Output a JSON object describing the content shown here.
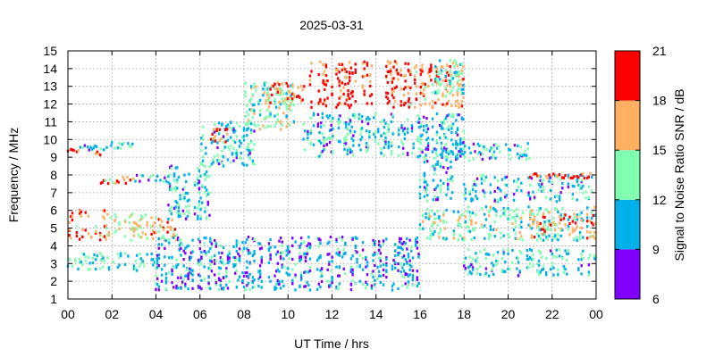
{
  "chart_data": {
    "type": "scatter",
    "title": "2025-03-31",
    "xlabel": "UT Time / hrs",
    "ylabel": "Frequency / MHz",
    "xlim": [
      0,
      24
    ],
    "ylim": [
      1,
      15
    ],
    "x_ticks": [
      "00",
      "02",
      "04",
      "06",
      "08",
      "10",
      "12",
      "14",
      "16",
      "18",
      "20",
      "22",
      "00"
    ],
    "y_ticks": [
      "1",
      "2",
      "3",
      "4",
      "5",
      "6",
      "7",
      "8",
      "9",
      "10",
      "11",
      "12",
      "13",
      "14",
      "15"
    ],
    "grid": true,
    "colorbar": {
      "label": "Signal to Noise Ratio SNR / dB",
      "min": 6,
      "max": 21,
      "ticks": [
        "6",
        "9",
        "12",
        "15",
        "18",
        "21"
      ],
      "bands": [
        {
          "from": 6,
          "to": 9,
          "color": "#7f00ff"
        },
        {
          "from": 9,
          "to": 12,
          "color": "#00b0e8"
        },
        {
          "from": 12,
          "to": 15,
          "color": "#80ffb0"
        },
        {
          "from": 15,
          "to": 18,
          "color": "#ffb060"
        },
        {
          "from": 18,
          "to": 21,
          "color": "#ff0000"
        }
      ]
    },
    "regions": [
      {
        "t0": 0.0,
        "t1": 1.8,
        "f0": 4.3,
        "f1": 6.0,
        "snr": 17.5
      },
      {
        "t0": 1.8,
        "t1": 3.6,
        "f0": 4.3,
        "f1": 5.8,
        "snr": 15.0
      },
      {
        "t0": 3.6,
        "t1": 5.0,
        "f0": 4.3,
        "f1": 5.6,
        "snr": 16.0
      },
      {
        "t0": 0.0,
        "t1": 4.2,
        "f0": 2.6,
        "f1": 3.6,
        "snr": 12.0
      },
      {
        "t0": 0.0,
        "t1": 0.6,
        "f0": 9.3,
        "f1": 9.5,
        "snr": 19.5
      },
      {
        "t0": 0.5,
        "t1": 2.0,
        "f0": 9.4,
        "f1": 9.7,
        "snr": 10.5
      },
      {
        "t0": 2.0,
        "t1": 3.0,
        "f0": 9.5,
        "f1": 9.9,
        "snr": 10.5
      },
      {
        "t0": 1.2,
        "t1": 1.6,
        "f0": 9.1,
        "f1": 9.3,
        "snr": 19.0
      },
      {
        "t0": 1.5,
        "t1": 3.0,
        "f0": 7.4,
        "f1": 7.9,
        "snr": 16.5
      },
      {
        "t0": 3.0,
        "t1": 4.5,
        "f0": 7.6,
        "f1": 8.0,
        "snr": 11.0
      },
      {
        "t0": 4.5,
        "t1": 6.5,
        "f0": 5.5,
        "f1": 8.5,
        "snr": 11.0
      },
      {
        "t0": 6.0,
        "t1": 8.5,
        "f0": 8.5,
        "f1": 11.0,
        "snr": 11.5
      },
      {
        "t0": 6.5,
        "t1": 7.3,
        "f0": 9.8,
        "f1": 10.6,
        "snr": 19.0
      },
      {
        "t0": 8.0,
        "t1": 10.5,
        "f0": 10.5,
        "f1": 13.2,
        "snr": 13.5
      },
      {
        "t0": 9.0,
        "t1": 10.8,
        "f0": 12.0,
        "f1": 13.2,
        "snr": 17.5
      },
      {
        "t0": 10.5,
        "t1": 18.0,
        "f0": 9.0,
        "f1": 11.5,
        "snr": 11.0
      },
      {
        "t0": 11.0,
        "t1": 15.5,
        "f0": 11.8,
        "f1": 14.4,
        "snr": 19.0
      },
      {
        "t0": 15.5,
        "t1": 18.0,
        "f0": 11.8,
        "f1": 14.2,
        "snr": 17.0
      },
      {
        "t0": 16.5,
        "t1": 18.0,
        "f0": 12.5,
        "f1": 14.5,
        "snr": 13.0
      },
      {
        "t0": 16.0,
        "t1": 17.5,
        "f0": 6.5,
        "f1": 9.5,
        "snr": 11.0
      },
      {
        "t0": 16.0,
        "t1": 24.0,
        "f0": 4.3,
        "f1": 6.2,
        "snr": 13.0
      },
      {
        "t0": 21.0,
        "t1": 24.0,
        "f0": 4.4,
        "f1": 5.8,
        "snr": 17.5
      },
      {
        "t0": 17.5,
        "t1": 21.0,
        "f0": 8.8,
        "f1": 9.8,
        "snr": 11.0
      },
      {
        "t0": 18.0,
        "t1": 24.0,
        "f0": 6.5,
        "f1": 8.0,
        "snr": 11.0
      },
      {
        "t0": 21.0,
        "t1": 23.8,
        "f0": 7.8,
        "f1": 8.1,
        "snr": 19.0
      },
      {
        "t0": 18.0,
        "t1": 24.0,
        "f0": 2.3,
        "f1": 3.8,
        "snr": 11.5
      },
      {
        "t0": 4.0,
        "t1": 16.0,
        "f0": 1.5,
        "f1": 4.5,
        "snr": 10.0
      }
    ]
  }
}
